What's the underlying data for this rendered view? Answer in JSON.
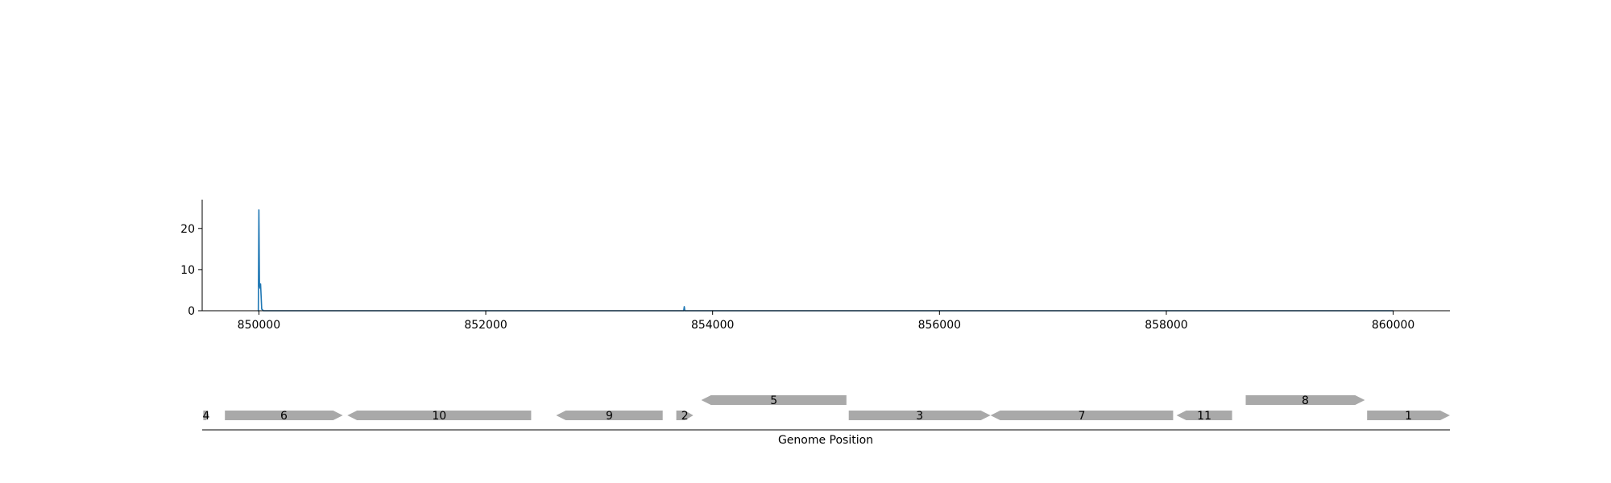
{
  "chart_data": [
    {
      "type": "line",
      "title": "",
      "xlabel": "",
      "ylabel": "",
      "xlim": [
        849500,
        860500
      ],
      "ylim": [
        0,
        27
      ],
      "x_ticks": [
        850000,
        852000,
        854000,
        856000,
        858000,
        860000
      ],
      "x_tick_labels": [
        "850000",
        "852000",
        "854000",
        "856000",
        "858000",
        "860000"
      ],
      "y_ticks": [
        0,
        10,
        20
      ],
      "y_tick_labels": [
        "0",
        "10",
        "20"
      ],
      "grid": false,
      "series": [
        {
          "color": "#1f77b4",
          "points": [
            [
              849990,
              0
            ],
            [
              849995,
              0
            ],
            [
              850000,
              24.5
            ],
            [
              850005,
              6.5
            ],
            [
              850010,
              5.5
            ],
            [
              850015,
              6.5
            ],
            [
              850020,
              3.5
            ],
            [
              850025,
              0.4
            ],
            [
              850030,
              0.3
            ],
            [
              850040,
              0
            ],
            [
              853745,
              0
            ],
            [
              853750,
              1
            ],
            [
              853755,
              0
            ],
            [
              860000,
              0
            ]
          ]
        }
      ]
    },
    {
      "type": "gene-track",
      "title": "",
      "xlabel": "Genome Position",
      "xlim": [
        849500,
        860500
      ],
      "bar_color": "#a9a9a9",
      "genes": [
        {
          "label": "4",
          "start": 849510,
          "end": 849560,
          "strand": "+",
          "row": 0
        },
        {
          "label": "6",
          "start": 849700,
          "end": 850740,
          "strand": "+",
          "row": 0
        },
        {
          "label": "10",
          "start": 850780,
          "end": 852400,
          "strand": "-",
          "row": 0
        },
        {
          "label": "9",
          "start": 852620,
          "end": 853560,
          "strand": "-",
          "row": 0
        },
        {
          "label": "2",
          "start": 853680,
          "end": 853830,
          "strand": "+",
          "row": 0
        },
        {
          "label": "5",
          "start": 853900,
          "end": 855180,
          "strand": "-",
          "row": 1
        },
        {
          "label": "3",
          "start": 855200,
          "end": 856450,
          "strand": "+",
          "row": 0
        },
        {
          "label": "7",
          "start": 856450,
          "end": 858060,
          "strand": "-",
          "row": 0
        },
        {
          "label": "11",
          "start": 858090,
          "end": 858580,
          "strand": "-",
          "row": 0
        },
        {
          "label": "8",
          "start": 858700,
          "end": 859750,
          "strand": "+",
          "row": 1
        },
        {
          "label": "1",
          "start": 859770,
          "end": 860500,
          "strand": "+",
          "row": 0
        }
      ]
    }
  ]
}
